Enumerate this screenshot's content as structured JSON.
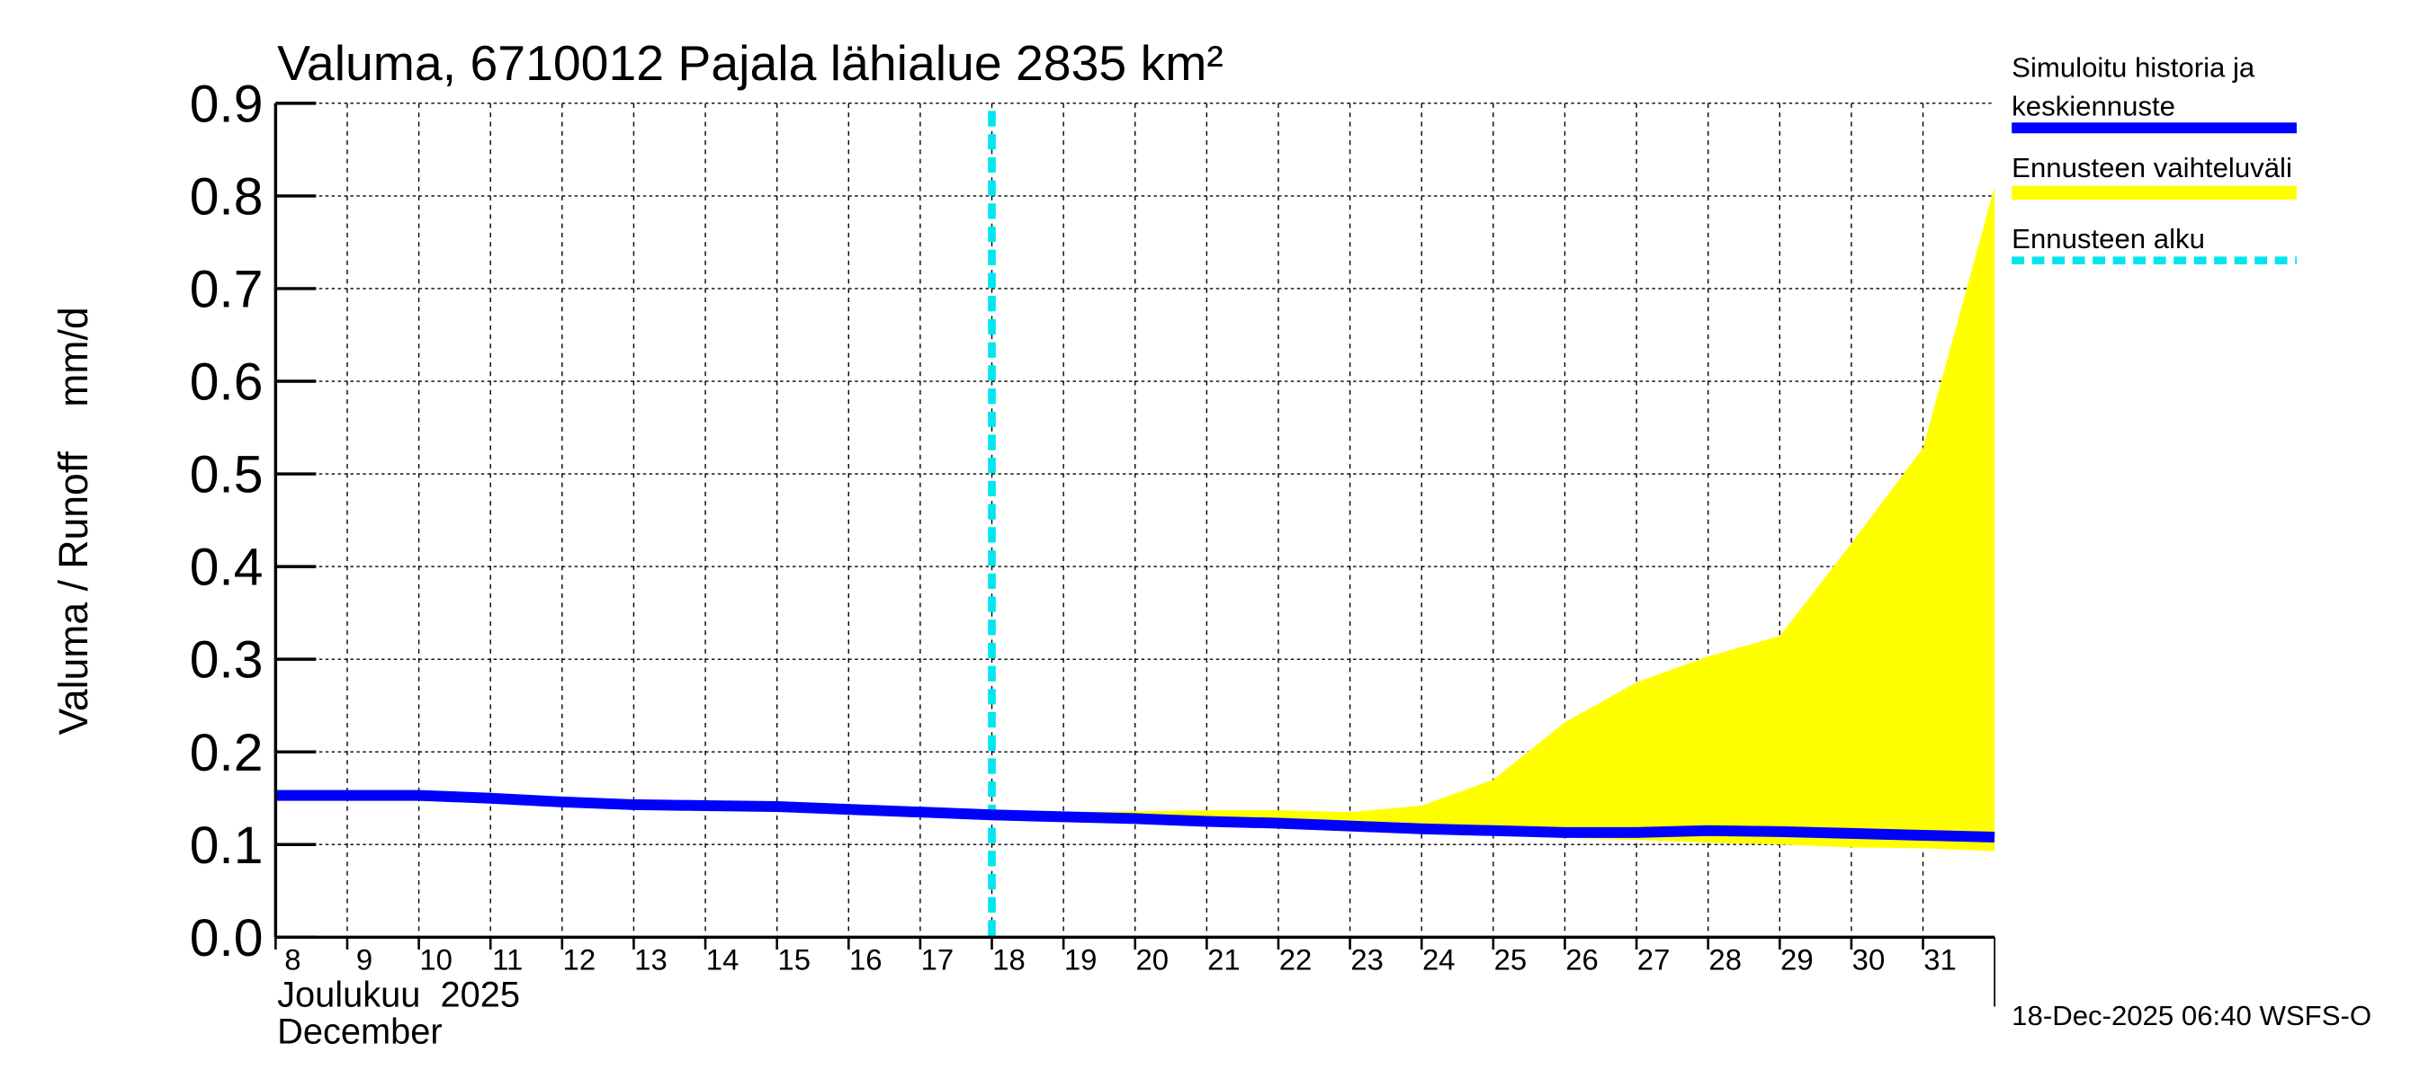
{
  "chart_data": {
    "type": "area",
    "title": "Valuma, 6710012 Pajala lähialue 2835 km²",
    "ylabel": "Valuma / Runoff    mm/d",
    "xlabel_line1": "Joulukuu  2025",
    "xlabel_line2": "December",
    "footer": "18-Dec-2025 06:40 WSFS-O",
    "ylim": [
      0,
      0.9
    ],
    "yticks": [
      "0.0",
      "0.1",
      "0.2",
      "0.3",
      "0.4",
      "0.5",
      "0.6",
      "0.7",
      "0.8",
      "0.9"
    ],
    "xlim_days": [
      8,
      32
    ],
    "xtick_labels": [
      "8",
      "9",
      "10",
      "11",
      "12",
      "13",
      "14",
      "15",
      "16",
      "17",
      "18",
      "19",
      "20",
      "21",
      "22",
      "23",
      "24",
      "25",
      "26",
      "27",
      "28",
      "29",
      "30",
      "31"
    ],
    "grid": true,
    "forecast_start_day": 18,
    "legend": {
      "placement": "right",
      "items": [
        {
          "label": "Simuloitu historia ja",
          "label2": "keskiennuste",
          "color": "#0000ff",
          "style": "solid"
        },
        {
          "label": "Ennusteen vaihteluväli",
          "color": "#ffff00",
          "style": "band"
        },
        {
          "label": "Ennusteen alku",
          "color": "#00e5ee",
          "style": "dashed"
        }
      ]
    },
    "series": [
      {
        "name": "Simuloitu historia ja keskiennuste",
        "color": "#0000ff",
        "x": [
          8,
          9,
          10,
          11,
          12,
          13,
          14,
          15,
          16,
          17,
          18,
          19,
          20,
          21,
          22,
          23,
          24,
          25,
          26,
          27,
          28,
          29,
          30,
          31,
          32
        ],
        "values": [
          0.153,
          0.153,
          0.153,
          0.15,
          0.146,
          0.143,
          0.142,
          0.141,
          0.138,
          0.135,
          0.132,
          0.13,
          0.128,
          0.125,
          0.123,
          0.12,
          0.117,
          0.115,
          0.113,
          0.113,
          0.115,
          0.114,
          0.112,
          0.11,
          0.108
        ]
      },
      {
        "name": "Ennusteen vaihteluväli",
        "color": "#ffff00",
        "x": [
          18,
          19,
          20,
          21,
          22,
          23,
          24,
          25,
          26,
          27,
          28,
          29,
          30,
          31,
          32
        ],
        "upper": [
          0.132,
          0.135,
          0.136,
          0.137,
          0.137,
          0.135,
          0.142,
          0.17,
          0.232,
          0.275,
          0.303,
          0.325,
          0.425,
          0.528,
          0.81
        ],
        "lower": [
          0.132,
          0.128,
          0.126,
          0.123,
          0.12,
          0.117,
          0.113,
          0.11,
          0.107,
          0.105,
          0.102,
          0.1,
          0.097,
          0.096,
          0.093
        ]
      }
    ]
  }
}
